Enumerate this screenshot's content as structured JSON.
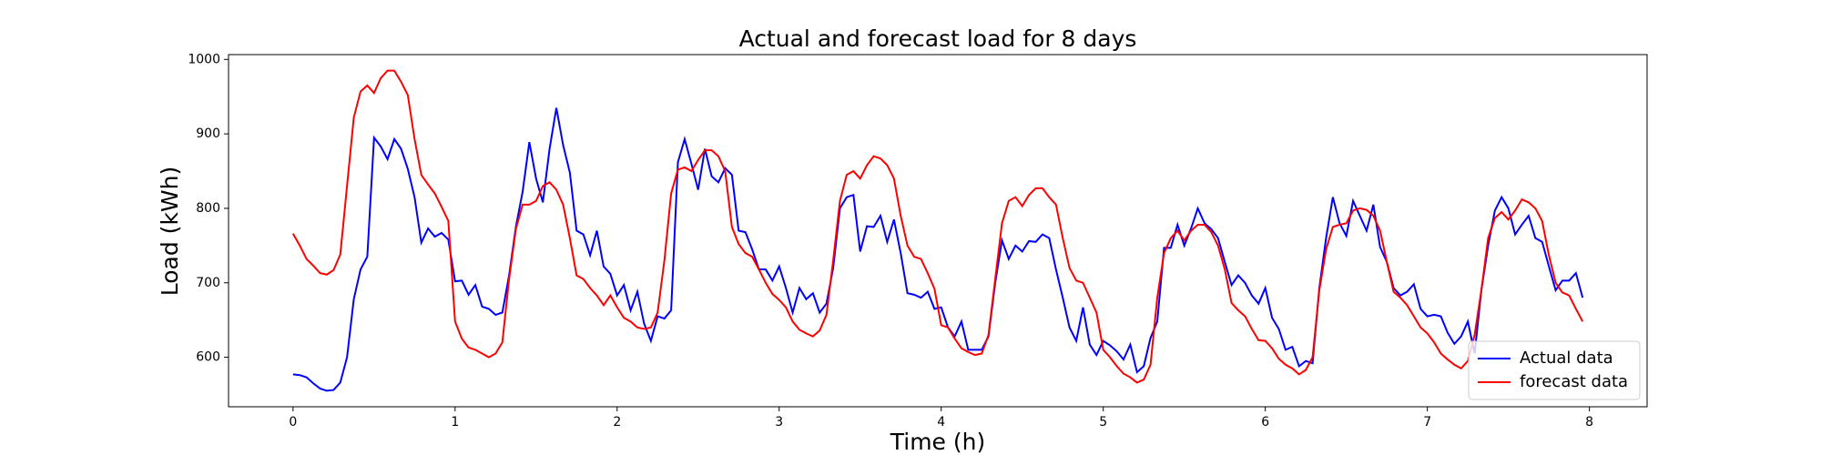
{
  "chart_data": {
    "type": "line",
    "title": "Actual and forecast load for 8 days",
    "xlabel": "Time (h)",
    "ylabel": "Load (kWh)",
    "x": [
      0,
      0.0417,
      0.0833,
      0.125,
      0.1667,
      0.2083,
      0.25,
      0.2917,
      0.3333,
      0.375,
      0.4167,
      0.4583,
      0.5,
      0.5417,
      0.5833,
      0.625,
      0.6667,
      0.7083,
      0.75,
      0.7917,
      0.8333,
      0.875,
      0.9167,
      0.9583,
      1,
      1.0417,
      1.0833,
      1.125,
      1.1667,
      1.2083,
      1.25,
      1.2917,
      1.3333,
      1.375,
      1.4167,
      1.4583,
      1.5,
      1.5417,
      1.5833,
      1.625,
      1.6667,
      1.7083,
      1.75,
      1.7917,
      1.8333,
      1.875,
      1.9167,
      1.9583,
      2,
      2.0417,
      2.0833,
      2.125,
      2.1667,
      2.2083,
      2.25,
      2.2917,
      2.3333,
      2.375,
      2.4167,
      2.4583,
      2.5,
      2.5417,
      2.5833,
      2.625,
      2.6667,
      2.7083,
      2.75,
      2.7917,
      2.8333,
      2.875,
      2.9167,
      2.9583,
      3,
      3.0417,
      3.0833,
      3.125,
      3.1667,
      3.2083,
      3.25,
      3.2917,
      3.3333,
      3.375,
      3.4167,
      3.4583,
      3.5,
      3.5417,
      3.5833,
      3.625,
      3.6667,
      3.7083,
      3.75,
      3.7917,
      3.8333,
      3.875,
      3.9167,
      3.9583,
      4,
      4.0417,
      4.0833,
      4.125,
      4.1667,
      4.2083,
      4.25,
      4.2917,
      4.3333,
      4.375,
      4.4167,
      4.4583,
      4.5,
      4.5417,
      4.5833,
      4.625,
      4.6667,
      4.7083,
      4.75,
      4.7917,
      4.8333,
      4.875,
      4.9167,
      4.9583,
      5,
      5.0417,
      5.0833,
      5.125,
      5.1667,
      5.2083,
      5.25,
      5.2917,
      5.3333,
      5.375,
      5.4167,
      5.4583,
      5.5,
      5.5417,
      5.5833,
      5.625,
      5.6667,
      5.7083,
      5.75,
      5.7917,
      5.8333,
      5.875,
      5.9167,
      5.9583,
      6,
      6.0417,
      6.0833,
      6.125,
      6.1667,
      6.2083,
      6.25,
      6.2917,
      6.3333,
      6.375,
      6.4167,
      6.4583,
      6.5,
      6.5417,
      6.5833,
      6.625,
      6.6667,
      6.7083,
      6.75,
      6.7917,
      6.8333,
      6.875,
      6.9167,
      6.9583,
      7,
      7.0417,
      7.0833,
      7.125,
      7.1667,
      7.2083,
      7.25,
      7.2917,
      7.3333,
      7.375,
      7.4167,
      7.4583,
      7.5,
      7.5417,
      7.5833,
      7.625,
      7.6667,
      7.7083,
      7.75,
      7.7917,
      7.8333,
      7.875,
      7.9167,
      7.9583
    ],
    "series": [
      {
        "name": "Actual data",
        "color": "#0000ff",
        "values": [
          577,
          576,
          573,
          565,
          558,
          555,
          556,
          566,
          600,
          678,
          718,
          735,
          895,
          883,
          866,
          893,
          880,
          853,
          815,
          754,
          773,
          762,
          767,
          758,
          702,
          703,
          684,
          697,
          668,
          665,
          657,
          660,
          710,
          775,
          822,
          889,
          840,
          808,
          880,
          935,
          885,
          848,
          770,
          765,
          737,
          770,
          722,
          712,
          683,
          697,
          663,
          688,
          645,
          622,
          655,
          652,
          663,
          862,
          893,
          860,
          825,
          880,
          843,
          835,
          854,
          845,
          770,
          768,
          745,
          718,
          718,
          703,
          722,
          693,
          660,
          693,
          678,
          686,
          660,
          672,
          720,
          800,
          815,
          818,
          742,
          776,
          775,
          790,
          755,
          785,
          740,
          686,
          684,
          680,
          688,
          665,
          667,
          640,
          628,
          648,
          610,
          610,
          610,
          628,
          700,
          757,
          732,
          750,
          742,
          756,
          755,
          765,
          760,
          718,
          680,
          640,
          622,
          667,
          617,
          603,
          622,
          616,
          608,
          597,
          617,
          580,
          588,
          626,
          648,
          747,
          747,
          778,
          750,
          773,
          800,
          780,
          772,
          760,
          728,
          697,
          710,
          700,
          683,
          672,
          693,
          653,
          638,
          610,
          614,
          588,
          595,
          592,
          693,
          760,
          815,
          780,
          763,
          810,
          790,
          770,
          805,
          748,
          728,
          693,
          683,
          688,
          698,
          665,
          655,
          657,
          655,
          633,
          618,
          628,
          648,
          605,
          690,
          750,
          797,
          815,
          800,
          765,
          778,
          790,
          760,
          755,
          722,
          690,
          703,
          703,
          713,
          680
        ]
      },
      {
        "name": "forecast data",
        "color": "#ff0000",
        "values": [
          766,
          750,
          732,
          723,
          713,
          711,
          717,
          738,
          830,
          922,
          957,
          965,
          955,
          975,
          985,
          985,
          970,
          952,
          893,
          845,
          832,
          820,
          802,
          783,
          648,
          625,
          613,
          610,
          605,
          600,
          605,
          620,
          705,
          772,
          805,
          805,
          810,
          830,
          835,
          825,
          805,
          760,
          710,
          705,
          693,
          683,
          670,
          683,
          667,
          653,
          648,
          640,
          638,
          640,
          660,
          730,
          820,
          852,
          855,
          850,
          865,
          878,
          878,
          870,
          850,
          775,
          752,
          740,
          735,
          718,
          700,
          685,
          677,
          667,
          648,
          637,
          632,
          628,
          636,
          657,
          730,
          810,
          845,
          850,
          840,
          858,
          870,
          867,
          858,
          840,
          790,
          750,
          735,
          732,
          713,
          692,
          643,
          640,
          625,
          612,
          607,
          603,
          605,
          630,
          705,
          780,
          810,
          815,
          803,
          818,
          827,
          827,
          815,
          805,
          760,
          720,
          703,
          700,
          680,
          660,
          610,
          600,
          588,
          578,
          573,
          566,
          570,
          590,
          680,
          740,
          760,
          770,
          757,
          770,
          778,
          778,
          768,
          750,
          718,
          673,
          663,
          655,
          638,
          623,
          622,
          612,
          598,
          590,
          585,
          577,
          583,
          600,
          690,
          745,
          775,
          778,
          780,
          797,
          800,
          798,
          790,
          770,
          728,
          688,
          680,
          670,
          655,
          640,
          632,
          620,
          605,
          597,
          590,
          585,
          595,
          630,
          690,
          760,
          787,
          795,
          785,
          797,
          812,
          808,
          800,
          783,
          737,
          700,
          687,
          683,
          665,
          648
        ]
      }
    ],
    "xlim": [
      -0.398,
      8.356
    ],
    "ylim": [
      533.5,
      1006.5
    ],
    "xticks": [
      0,
      1,
      2,
      3,
      4,
      5,
      6,
      7,
      8
    ],
    "yticks": [
      600,
      700,
      800,
      900,
      1000
    ],
    "legend": "lower right"
  }
}
